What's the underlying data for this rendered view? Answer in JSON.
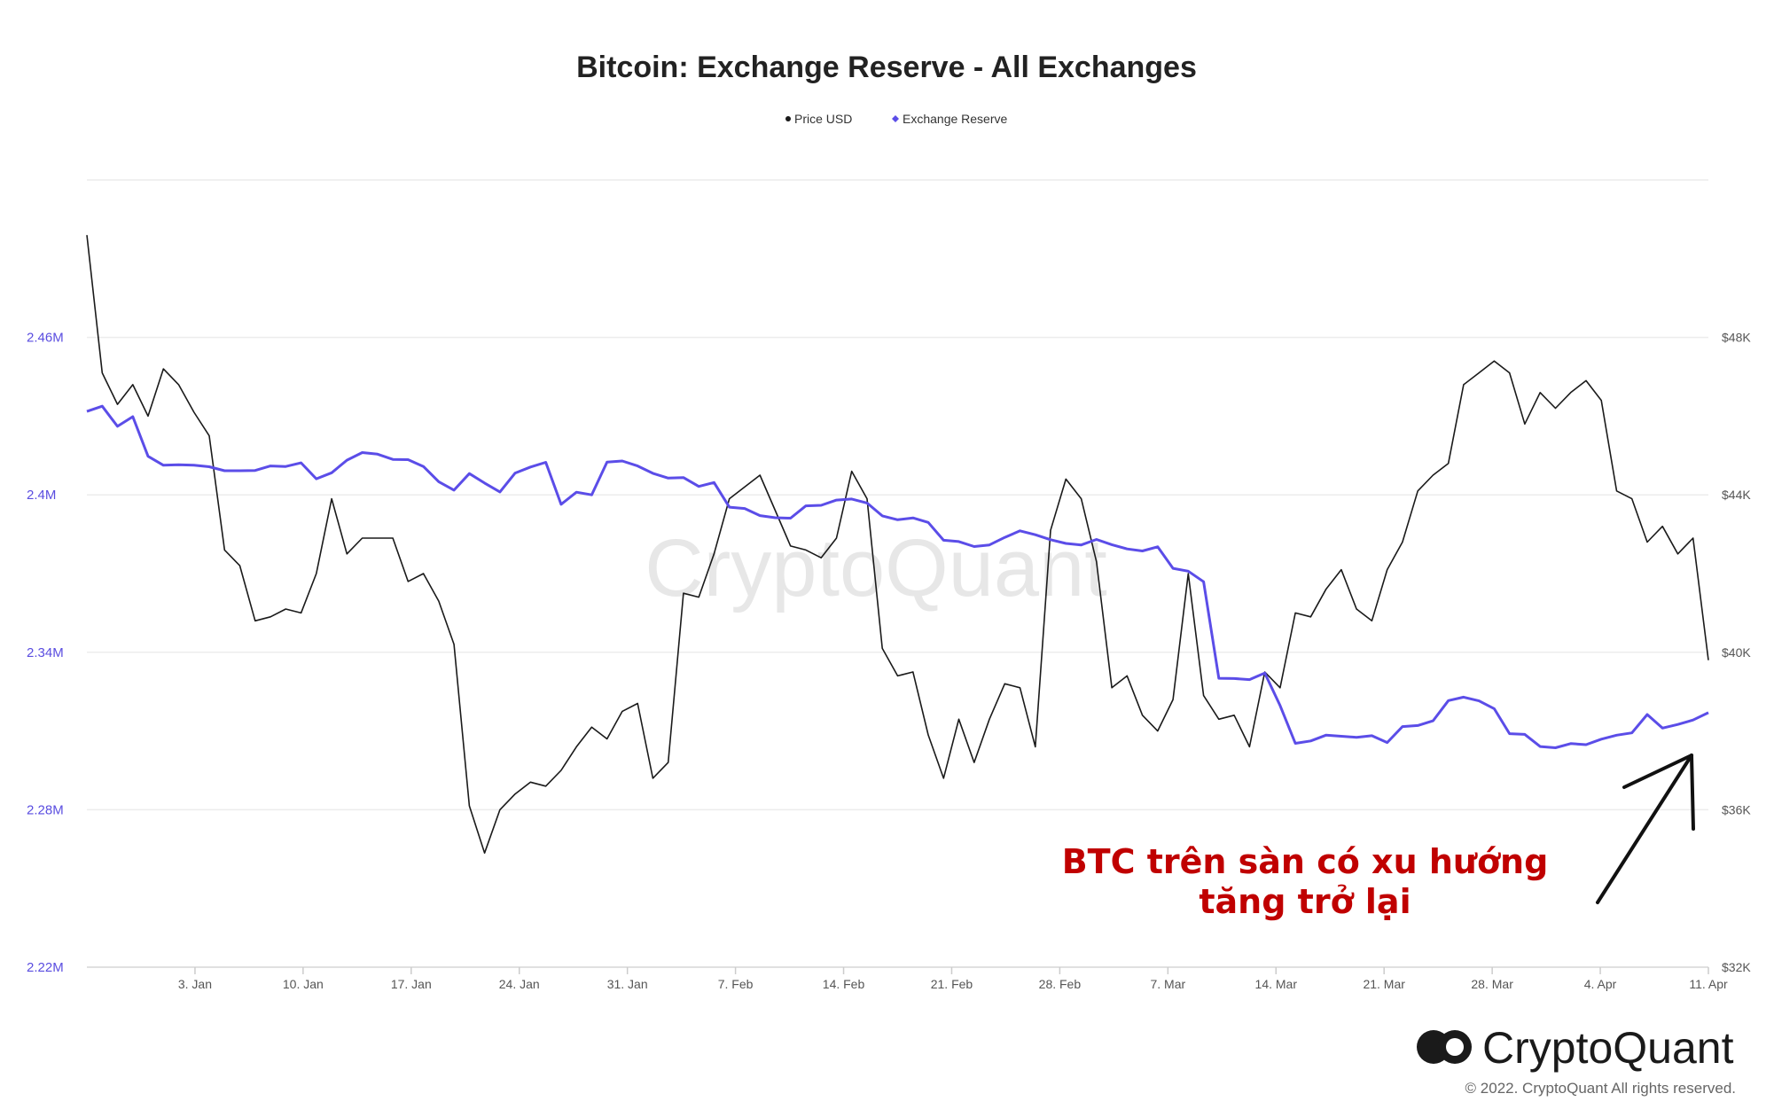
{
  "chart_data": {
    "type": "line",
    "title": "Bitcoin: Exchange Reserve - All Exchanges",
    "legend": [
      "Price USD",
      "Exchange Reserve"
    ],
    "legend_position": "top-center",
    "grid": true,
    "x_tick_labels": [
      "3. Jan",
      "10. Jan",
      "17. Jan",
      "24. Jan",
      "31. Jan",
      "7. Feb",
      "14. Feb",
      "21. Feb",
      "28. Feb",
      "7. Mar",
      "14. Mar",
      "21. Mar",
      "28. Mar",
      "4. Apr",
      "11. Apr"
    ],
    "x_range": [
      "2021-12-27",
      "2022-04-11"
    ],
    "y_left": {
      "label": "",
      "range": [
        2.22,
        2.52
      ],
      "tick_values": [
        2.22,
        2.28,
        2.34,
        2.4,
        2.46
      ],
      "tick_labels": [
        "2.22M",
        "2.28M",
        "2.34M",
        "2.4M",
        "2.46M"
      ]
    },
    "y_right": {
      "label": "",
      "range": [
        32000,
        52000
      ],
      "tick_values": [
        32000,
        36000,
        40000,
        44000,
        48000
      ],
      "tick_labels": [
        "$32K",
        "$36K",
        "$40K",
        "$44K",
        "$48K"
      ]
    },
    "series": [
      {
        "name": "Price USD",
        "axis": "right",
        "color": "#1a1a1a",
        "values": [
          50600,
          47100,
          46300,
          46800,
          46000,
          47200,
          46800,
          46100,
          45500,
          42600,
          42200,
          40800,
          40900,
          41100,
          41000,
          42000,
          43900,
          42500,
          42900,
          42900,
          42900,
          41800,
          42000,
          41300,
          40200,
          36100,
          34900,
          36000,
          36400,
          36700,
          36600,
          37000,
          37600,
          38100,
          37800,
          38500,
          38700,
          36800,
          37200,
          41500,
          41400,
          42500,
          43900,
          44200,
          44500,
          43600,
          42700,
          42600,
          42400,
          42900,
          44600,
          43900,
          40100,
          39400,
          39500,
          37900,
          36800,
          38300,
          37200,
          38300,
          39200,
          39100,
          37600,
          43100,
          44400,
          43900,
          42300,
          39100,
          39400,
          38400,
          38000,
          38800,
          42000,
          38900,
          38300,
          38400,
          37600,
          39500,
          39100,
          41000,
          40900,
          41600,
          42100,
          41100,
          40800,
          42100,
          42800,
          44100,
          44500,
          44800,
          46800,
          47100,
          47400,
          47100,
          45800,
          46600,
          46200,
          46600,
          46900,
          46400,
          44100,
          43900,
          42800,
          43200,
          42500,
          42900,
          39800
        ]
      },
      {
        "name": "Exchange Reserve",
        "axis": "left",
        "color": "#5b4de8",
        "values": [
          2.4318,
          2.4338,
          2.4261,
          2.4298,
          2.4147,
          2.4113,
          2.4115,
          2.4113,
          2.4107,
          2.4092,
          2.4092,
          2.4093,
          2.411,
          2.4108,
          2.4122,
          2.4061,
          2.4084,
          2.4132,
          2.4161,
          2.4155,
          2.4135,
          2.4134,
          2.4108,
          2.405,
          2.4018,
          2.4081,
          2.4045,
          2.4011,
          2.4083,
          2.4106,
          2.4124,
          2.3964,
          2.401,
          2.4,
          2.4125,
          2.4129,
          2.411,
          2.4082,
          2.4064,
          2.4066,
          2.4032,
          2.4047,
          2.3953,
          2.3948,
          2.3921,
          2.3913,
          2.3911,
          2.3958,
          2.396,
          2.398,
          2.3984,
          2.3969,
          2.392,
          2.3905,
          2.3912,
          2.3895,
          2.3827,
          2.3822,
          2.3803,
          2.3809,
          2.3838,
          2.3863,
          2.3848,
          2.3829,
          2.3815,
          2.3809,
          2.383,
          2.381,
          2.3794,
          2.3786,
          2.3802,
          2.372,
          2.3709,
          2.3669,
          2.3301,
          2.33,
          2.3296,
          2.3321,
          2.3197,
          2.3053,
          2.3062,
          2.3084,
          2.308,
          2.3076,
          2.3082,
          2.3056,
          2.3117,
          2.3121,
          2.3139,
          2.3216,
          2.3229,
          2.3215,
          2.3185,
          2.309,
          2.3087,
          2.3041,
          2.3036,
          2.3052,
          2.3048,
          2.3069,
          2.3084,
          2.3093,
          2.3163,
          2.3111,
          2.3125,
          2.3142,
          2.317
        ]
      }
    ]
  },
  "annotation": {
    "line1": "BTC trên sàn có xu hướng",
    "line2": "tăng trở lại"
  },
  "watermark": "CryptoQuant",
  "brand": {
    "name": "CryptoQuant",
    "copyright": "© 2022. CryptoQuant All rights reserved."
  }
}
